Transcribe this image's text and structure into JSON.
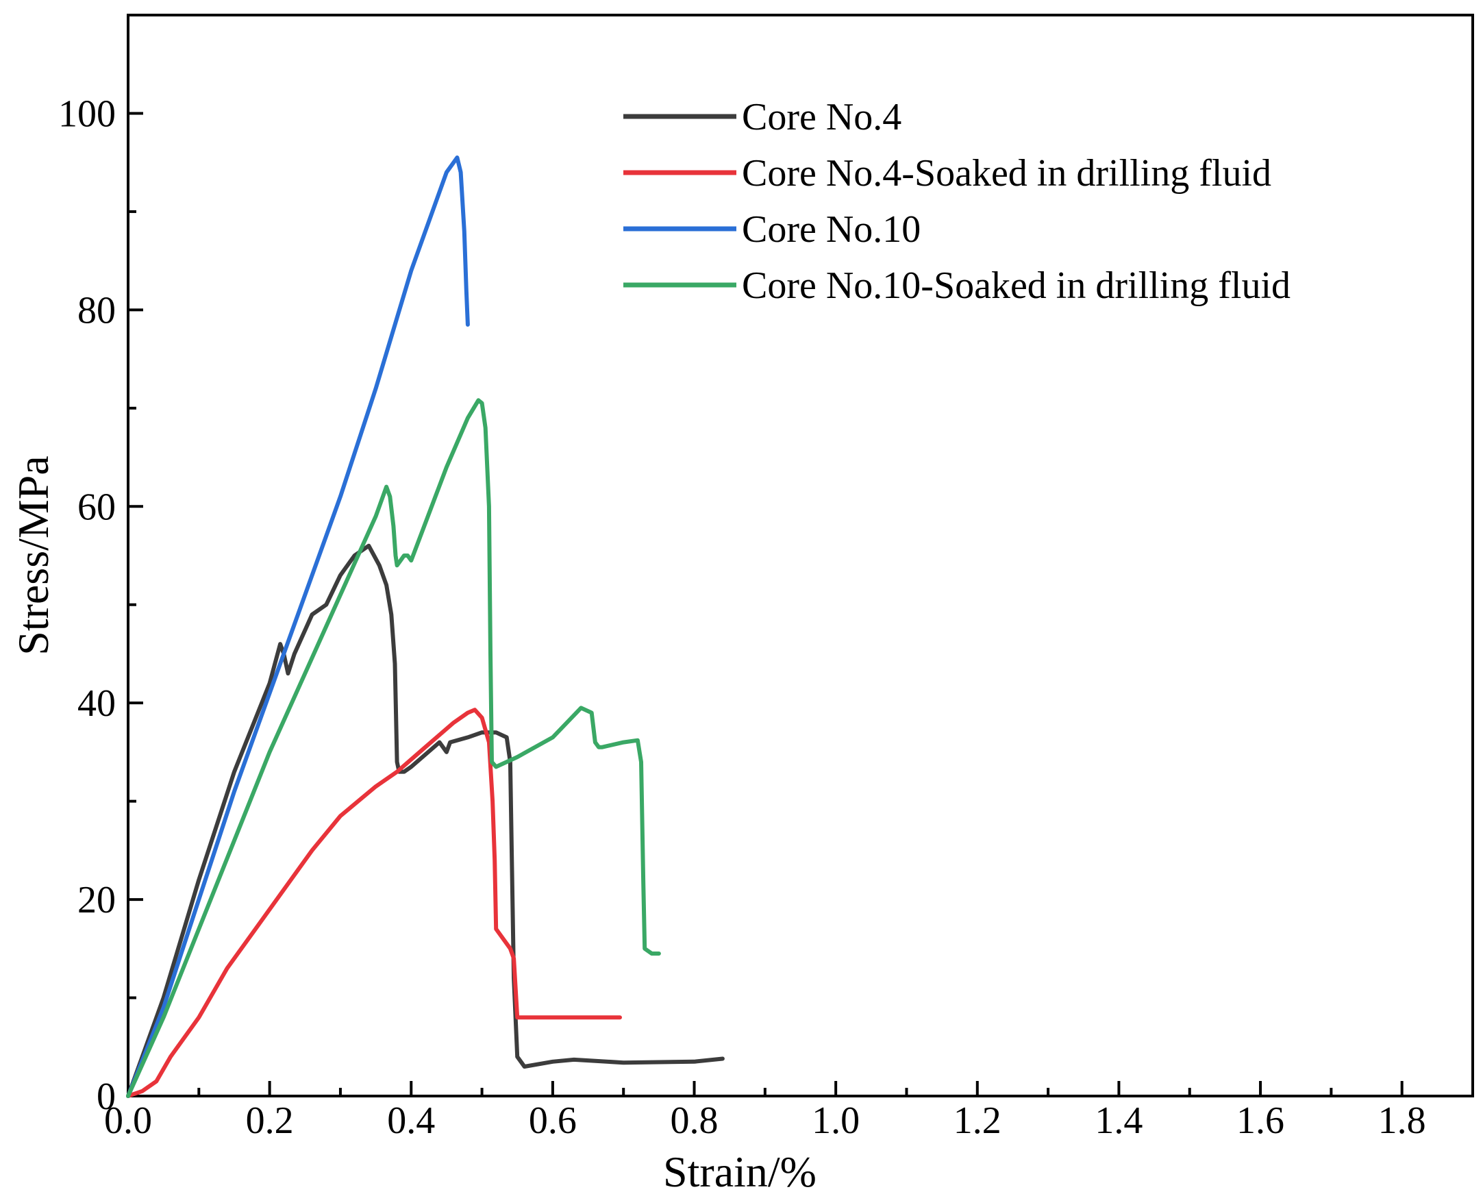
{
  "chart_data": {
    "type": "line",
    "title": "",
    "xlabel": "Strain/%",
    "ylabel": "Stress/MPa",
    "xlim": [
      0,
      1.9
    ],
    "ylim": [
      0,
      110
    ],
    "x_ticks": [
      0.0,
      0.2,
      0.4,
      0.6,
      0.8,
      1.0,
      1.2,
      1.4,
      1.6,
      1.8
    ],
    "x_tick_labels": [
      "0.0",
      "0.2",
      "0.4",
      "0.6",
      "0.8",
      "1.0",
      "1.2",
      "1.4",
      "1.6",
      "1.8"
    ],
    "y_ticks": [
      0,
      20,
      40,
      60,
      80,
      100
    ],
    "y_tick_labels": [
      "0",
      "20",
      "40",
      "60",
      "80",
      "100"
    ],
    "legend_position": "top-right",
    "grid": false,
    "series": [
      {
        "name": "Core No.4",
        "color": "#3c3c3c",
        "x": [
          0,
          0.02,
          0.05,
          0.1,
          0.15,
          0.2,
          0.215,
          0.22,
          0.226,
          0.235,
          0.26,
          0.28,
          0.3,
          0.32,
          0.34,
          0.355,
          0.365,
          0.372,
          0.377,
          0.38,
          0.383,
          0.39,
          0.4,
          0.44,
          0.45,
          0.455,
          0.48,
          0.5,
          0.52,
          0.535,
          0.54,
          0.542,
          0.545,
          0.55,
          0.56,
          0.6,
          0.63,
          0.7,
          0.8,
          0.84
        ],
        "y": [
          0,
          4,
          10,
          22,
          33,
          42,
          46,
          45,
          43,
          45,
          49,
          50,
          53,
          55,
          56,
          54,
          52,
          49,
          44,
          34,
          33,
          33,
          33.5,
          36,
          35,
          36,
          36.5,
          37,
          37,
          36.5,
          34,
          25,
          12,
          4,
          3,
          3.5,
          3.7,
          3.4,
          3.5,
          3.8
        ]
      },
      {
        "name": "Core No.4-Soaked in drilling fluid",
        "color": "#e8333a",
        "x": [
          0,
          0.02,
          0.04,
          0.06,
          0.1,
          0.14,
          0.18,
          0.22,
          0.26,
          0.3,
          0.35,
          0.38,
          0.42,
          0.46,
          0.48,
          0.49,
          0.5,
          0.51,
          0.515,
          0.518,
          0.52,
          0.53,
          0.54,
          0.545,
          0.55,
          0.56,
          0.6,
          0.65,
          0.695
        ],
        "y": [
          0,
          0.5,
          1.5,
          4,
          8,
          13,
          17,
          21,
          25,
          28.5,
          31.5,
          33,
          35.5,
          38,
          39,
          39.3,
          38.5,
          36,
          30,
          24,
          17,
          16,
          15,
          14,
          8,
          8,
          8,
          8,
          8
        ]
      },
      {
        "name": "Core No.10",
        "color": "#2a6fd6",
        "x": [
          0,
          0.05,
          0.1,
          0.15,
          0.2,
          0.25,
          0.3,
          0.35,
          0.4,
          0.45,
          0.465,
          0.47,
          0.475,
          0.478,
          0.48
        ],
        "y": [
          0,
          9,
          20,
          31,
          41,
          51,
          61,
          72,
          84,
          94,
          95.5,
          94,
          88,
          82,
          78.5
        ]
      },
      {
        "name": "Core No.10-Soaked in drilling fluid",
        "color": "#3aa865",
        "x": [
          0,
          0.05,
          0.1,
          0.15,
          0.2,
          0.25,
          0.3,
          0.35,
          0.365,
          0.37,
          0.375,
          0.378,
          0.38,
          0.385,
          0.39,
          0.395,
          0.4,
          0.45,
          0.48,
          0.495,
          0.5,
          0.505,
          0.51,
          0.512,
          0.514,
          0.52,
          0.55,
          0.6,
          0.64,
          0.655,
          0.66,
          0.665,
          0.67,
          0.7,
          0.72,
          0.725,
          0.728,
          0.73,
          0.74,
          0.75
        ],
        "y": [
          0,
          8,
          17,
          26,
          35,
          43,
          51,
          59,
          62,
          61,
          58,
          55,
          54,
          54.5,
          55,
          55,
          54.5,
          64,
          69,
          70.8,
          70.5,
          68,
          60,
          45,
          34,
          33.5,
          34.5,
          36.5,
          39.5,
          39,
          36,
          35.5,
          35.5,
          36,
          36.2,
          34,
          22,
          15,
          14.5,
          14.5
        ]
      }
    ]
  }
}
